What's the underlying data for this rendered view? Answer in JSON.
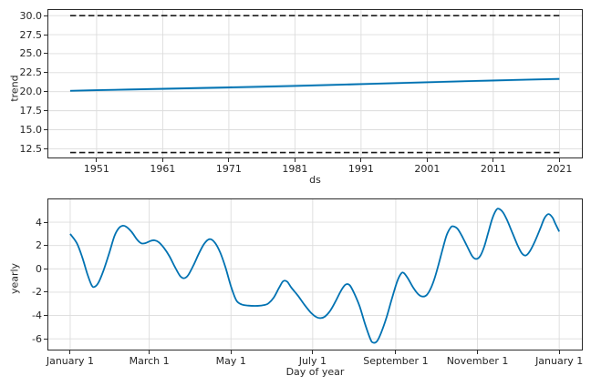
{
  "figure": {
    "background": "#ffffff",
    "description": "forecast components: trend and yearly seasonality"
  },
  "chart_data": [
    {
      "type": "line",
      "name": "trend-component",
      "title": "",
      "xlabel": "ds",
      "ylabel": "trend",
      "grid": true,
      "legend": "none",
      "xlim": [
        1943.7,
        2024.4
      ],
      "ylim": [
        11.35,
        30.74
      ],
      "xticks": [
        1951,
        1961,
        1971,
        1981,
        1991,
        2001,
        2011,
        2021
      ],
      "xtick_labels": [
        "1951",
        "1961",
        "1971",
        "1981",
        "1991",
        "2001",
        "2011",
        "2021"
      ],
      "yticks": [
        12.5,
        15.0,
        17.5,
        20.0,
        22.5,
        25.0,
        27.5,
        30.0
      ],
      "ytick_labels": [
        "12.5",
        "15.0",
        "17.5",
        "20.0",
        "22.5",
        "25.0",
        "27.5",
        "30.0"
      ],
      "colors": {
        "line": "#0072B2",
        "band": "#0072B2",
        "dashed": "#1a1a1a",
        "grid": "#dcdcdc"
      },
      "band": {
        "x": [
          1947,
          1961,
          1976,
          1991,
          2006,
          2021
        ],
        "lower": [
          19.98,
          20.2,
          20.45,
          20.82,
          21.2,
          21.52
        ],
        "upper": [
          20.26,
          20.55,
          20.88,
          21.18,
          21.52,
          21.84
        ],
        "color": "#0072B2",
        "alpha": 0.18
      },
      "series": [
        {
          "name": "cap",
          "style": "dashed",
          "smooth": false,
          "width": 1.7,
          "color": "#1a1a1a",
          "x": [
            1947,
            2021
          ],
          "y": [
            30.0,
            30.0
          ]
        },
        {
          "name": "floor",
          "style": "dashed",
          "smooth": false,
          "width": 1.7,
          "color": "#1a1a1a",
          "x": [
            1947,
            2021
          ],
          "y": [
            12.0,
            12.0
          ]
        },
        {
          "name": "trend",
          "style": "solid",
          "smooth": false,
          "width": 1.8,
          "color": "#0072B2",
          "x": [
            1947,
            1951,
            1956,
            1961,
            1966,
            1971,
            1976,
            1981,
            1986,
            1991,
            1996,
            2001,
            2006,
            2011,
            2016,
            2021
          ],
          "y": [
            20.12,
            20.2,
            20.29,
            20.38,
            20.47,
            20.56,
            20.66,
            20.76,
            20.88,
            21.0,
            21.12,
            21.24,
            21.36,
            21.47,
            21.58,
            21.68
          ]
        }
      ]
    },
    {
      "type": "line",
      "name": "yearly-component",
      "title": "",
      "xlabel": "Day of year",
      "ylabel": "yearly",
      "grid": true,
      "legend": "none",
      "xlim": [
        -16.3,
        381.9
      ],
      "ylim": [
        -6.92,
        5.96
      ],
      "xticks": [
        0,
        59,
        120,
        181,
        243,
        304,
        365
      ],
      "xtick_labels": [
        "January 1",
        "March 1",
        "May 1",
        "July 1",
        "September 1",
        "November 1",
        "January 1"
      ],
      "yticks": [
        -6,
        -4,
        -2,
        0,
        2,
        4
      ],
      "ytick_labels": [
        "-6",
        "-4",
        "-2",
        "0",
        "2",
        "4"
      ],
      "colors": {
        "line": "#0072B2",
        "band": "#0072B2",
        "dashed": "#1a1a1a",
        "grid": "#dcdcdc"
      },
      "series": [
        {
          "name": "yearly",
          "style": "solid",
          "smooth": true,
          "width": 1.8,
          "color": "#0072B2",
          "x": [
            0,
            5,
            9,
            13,
            16,
            18,
            21,
            25,
            29,
            33,
            36,
            39,
            42,
            46,
            50,
            53,
            56,
            60,
            63,
            66,
            70,
            74,
            78,
            82,
            85,
            88,
            92,
            96,
            100,
            104,
            108,
            112,
            116,
            120,
            124,
            128,
            133,
            140,
            145,
            148,
            152,
            156,
            159,
            162,
            165,
            170,
            175,
            180,
            184,
            187,
            190,
            194,
            198,
            202,
            205,
            207,
            209,
            212,
            216,
            220,
            224,
            226,
            229,
            232,
            236,
            240,
            244,
            247,
            249,
            252,
            256,
            260,
            263,
            266,
            269,
            272,
            275,
            278,
            281,
            284,
            286,
            289,
            292,
            296,
            300,
            303,
            306,
            309,
            312,
            315,
            318,
            320,
            323,
            326,
            330,
            334,
            337,
            340,
            343,
            347,
            351,
            354,
            357,
            360,
            362,
            365
          ],
          "y": [
            3.0,
            2.2,
            1.0,
            -0.5,
            -1.4,
            -1.55,
            -1.2,
            -0.1,
            1.3,
            2.8,
            3.45,
            3.7,
            3.6,
            3.15,
            2.5,
            2.2,
            2.2,
            2.4,
            2.45,
            2.3,
            1.8,
            1.1,
            0.2,
            -0.6,
            -0.8,
            -0.55,
            0.3,
            1.3,
            2.15,
            2.55,
            2.25,
            1.4,
            0.1,
            -1.5,
            -2.7,
            -3.05,
            -3.15,
            -3.17,
            -3.1,
            -2.95,
            -2.45,
            -1.6,
            -1.05,
            -1.1,
            -1.6,
            -2.3,
            -3.1,
            -3.8,
            -4.15,
            -4.22,
            -4.1,
            -3.6,
            -2.8,
            -1.9,
            -1.4,
            -1.3,
            -1.45,
            -2.1,
            -3.2,
            -4.7,
            -6.0,
            -6.32,
            -6.2,
            -5.5,
            -4.2,
            -2.6,
            -1.1,
            -0.4,
            -0.35,
            -0.8,
            -1.6,
            -2.2,
            -2.37,
            -2.25,
            -1.7,
            -0.8,
            0.4,
            1.7,
            2.9,
            3.55,
            3.65,
            3.45,
            2.9,
            2.0,
            1.1,
            0.85,
            1.1,
            1.9,
            3.1,
            4.3,
            5.05,
            5.15,
            4.85,
            4.2,
            3.1,
            2.0,
            1.35,
            1.15,
            1.5,
            2.4,
            3.5,
            4.35,
            4.7,
            4.4,
            3.9,
            3.2
          ]
        }
      ]
    }
  ]
}
